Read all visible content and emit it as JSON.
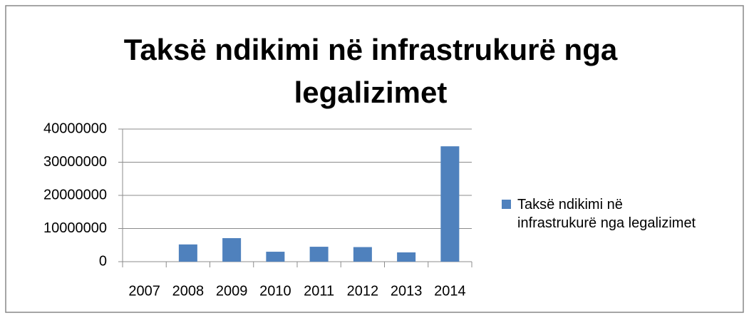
{
  "chart_data": {
    "type": "bar",
    "title": "Taksë ndikimi në infrastrukurë nga legalizimet",
    "categories": [
      "2007",
      "2008",
      "2009",
      "2010",
      "2011",
      "2012",
      "2013",
      "2014"
    ],
    "series": [
      {
        "name": "Taksë ndikimi në infrastrukurë nga legalizimet",
        "color": "#4f81bd",
        "values": [
          0,
          5200000,
          7100000,
          3000000,
          4500000,
          4400000,
          2800000,
          34800000
        ]
      }
    ],
    "ylim": [
      0,
      40000000
    ],
    "yticks": [
      0,
      10000000,
      20000000,
      30000000,
      40000000
    ],
    "grid": true,
    "legend": "right"
  }
}
